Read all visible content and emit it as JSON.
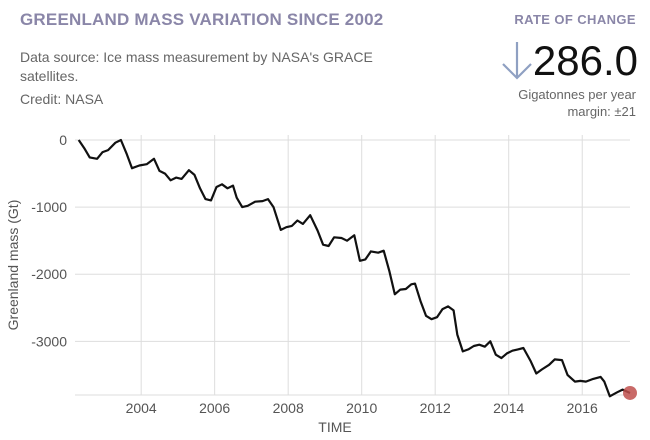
{
  "header": {
    "title": "GREENLAND MASS VARIATION SINCE 2002",
    "source": "Data source: Ice mass measurement by NASA's GRACE satellites.",
    "credit": "Credit: NASA"
  },
  "rate_of_change": {
    "label": "RATE OF CHANGE",
    "value": "286.0",
    "unit": "Gigatonnes per year",
    "margin": "margin: ±21",
    "direction": "down-arrow-icon",
    "arrow_color": "#8fa0c2"
  },
  "chart_data": {
    "type": "line",
    "title": "GREENLAND MASS VARIATION SINCE 2002",
    "xlabel": "TIME",
    "ylabel": "Greenland mass (Gt)",
    "xlim": [
      2002.2,
      2017.3
    ],
    "ylim": [
      -3800,
      0
    ],
    "xticks": [
      2004,
      2006,
      2008,
      2010,
      2012,
      2014,
      2016
    ],
    "yticks": [
      0,
      -1000,
      -2000,
      -3000
    ],
    "grid": true,
    "line_color": "#111111",
    "marker_color": "#c0504d",
    "series": [
      {
        "x": [
          2002.3,
          2002.45,
          2002.6,
          2002.8,
          2002.95,
          2003.1,
          2003.3,
          2003.45,
          2003.6,
          2003.75,
          2003.95,
          2004.15,
          2004.35,
          2004.5,
          2004.65,
          2004.8,
          2004.95,
          2005.1,
          2005.3,
          2005.45,
          2005.6,
          2005.75,
          2005.9,
          2006.05,
          2006.2,
          2006.35,
          2006.5,
          2006.6,
          2006.75,
          2006.9,
          2007.1,
          2007.3,
          2007.45,
          2007.6,
          2007.8,
          2007.95,
          2008.1,
          2008.25,
          2008.4,
          2008.6,
          2008.8,
          2008.95,
          2009.1,
          2009.25,
          2009.45,
          2009.6,
          2009.8,
          2009.95,
          2010.1,
          2010.25,
          2010.45,
          2010.6,
          2010.75,
          2010.9,
          2011.05,
          2011.2,
          2011.35,
          2011.45,
          2011.6,
          2011.75,
          2011.9,
          2012.05,
          2012.2,
          2012.35,
          2012.5,
          2012.6,
          2012.75,
          2012.9,
          2013.05,
          2013.2,
          2013.35,
          2013.5,
          2013.65,
          2013.8,
          2013.95,
          2014.1,
          2014.25,
          2014.4,
          2014.6,
          2014.75,
          2014.9,
          2015.1,
          2015.25,
          2015.45,
          2015.6,
          2015.8,
          2015.95,
          2016.1,
          2016.3,
          2016.5,
          2016.6,
          2016.75,
          2016.95,
          2017.1,
          2017.3
        ],
        "y": [
          0,
          -120,
          -260,
          -280,
          -180,
          -150,
          -40,
          0,
          -200,
          -420,
          -380,
          -360,
          -280,
          -460,
          -500,
          -600,
          -560,
          -580,
          -450,
          -520,
          -720,
          -880,
          -900,
          -700,
          -660,
          -720,
          -680,
          -860,
          -1000,
          -980,
          -920,
          -910,
          -880,
          -1000,
          -1340,
          -1300,
          -1280,
          -1200,
          -1250,
          -1120,
          -1350,
          -1560,
          -1580,
          -1450,
          -1460,
          -1500,
          -1420,
          -1800,
          -1780,
          -1660,
          -1680,
          -1650,
          -1950,
          -2300,
          -2230,
          -2220,
          -2150,
          -2140,
          -2400,
          -2620,
          -2670,
          -2640,
          -2520,
          -2480,
          -2540,
          -2900,
          -3150,
          -3120,
          -3070,
          -3050,
          -3080,
          -3000,
          -3200,
          -3250,
          -3180,
          -3140,
          -3120,
          -3100,
          -3300,
          -3480,
          -3420,
          -3350,
          -3270,
          -3280,
          -3500,
          -3600,
          -3590,
          -3600,
          -3560,
          -3530,
          -3600,
          -3820,
          -3760,
          -3720,
          -3770
        ]
      }
    ]
  }
}
